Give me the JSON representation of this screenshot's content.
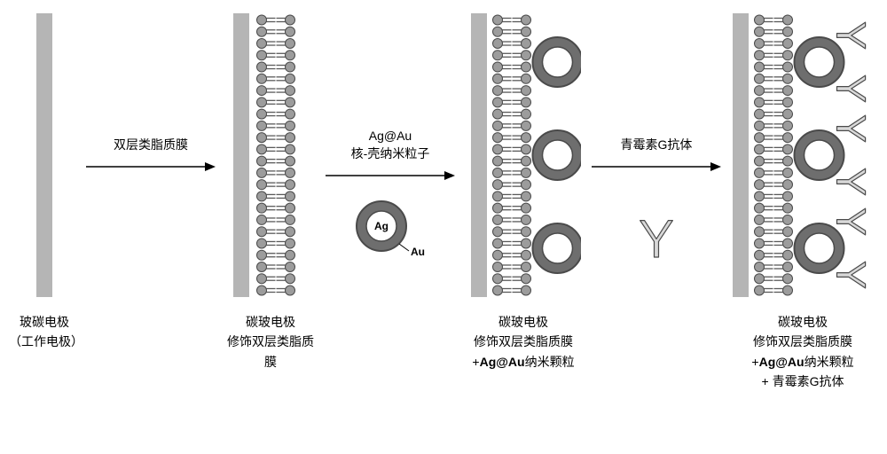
{
  "colors": {
    "background": "#ffffff",
    "electrode_fill": "#b5b5b5",
    "lipid_head": "#9c9c9c",
    "lipid_head_stroke": "#4a4a4a",
    "lipid_tail": "#5a5a5a",
    "arrow": "#000000",
    "nano_outer_stroke": "#4a4a4a",
    "nano_outer_fill": "#6e6e6e",
    "nano_inner_fill": "#ffffff",
    "nano_inner_stroke": "#4a4a4a",
    "antibody_fill": "#d9d9d9",
    "antibody_stroke": "#4a4a4a",
    "text": "#000000"
  },
  "dims": {
    "electrode_w": 18,
    "electrode_h": 320,
    "membrane_h": 320,
    "lipid_head_r": 5.5,
    "lipid_head_count": 24,
    "lipid_tail_len": 10,
    "bilayer_gap": 32,
    "nano_outer_r": 28,
    "nano_inner_r": 17,
    "nano_count": 3,
    "antibody_scale": 1.0
  },
  "arrows": {
    "a1": {
      "label1": "双层类脂质膜",
      "label2": ""
    },
    "a2": {
      "label1": "Ag@Au",
      "label2": "核-壳纳米粒子"
    },
    "a3": {
      "label1": "青霉素G抗体",
      "label2": ""
    }
  },
  "legend": {
    "ag": "Ag",
    "au": "Au"
  },
  "stages": {
    "s1": {
      "caption_l1": "玻碳电极",
      "caption_l2": "（工作电极）"
    },
    "s2": {
      "caption_l1": "碳玻电极",
      "caption_l2": "修饰双层类脂质膜"
    },
    "s3": {
      "caption_l1": "碳玻电极",
      "caption_l2": "修饰双层类脂质膜",
      "caption_l3_pre": "+",
      "caption_l3_bold": "Ag@Au",
      "caption_l3_post": "纳米颗粒"
    },
    "s4": {
      "caption_l1": "碳玻电极",
      "caption_l2": "修饰双层类脂质膜",
      "caption_l3_pre": "+",
      "caption_l3_bold": "Ag@Au",
      "caption_l3_post": "纳米颗粒",
      "caption_l4": "+ 青霉素G抗体"
    }
  }
}
